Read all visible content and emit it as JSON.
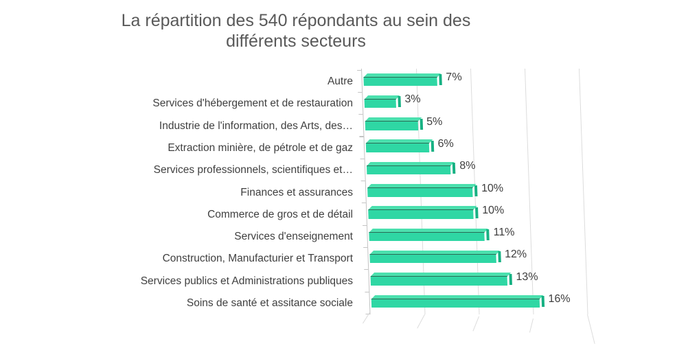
{
  "chart_data": {
    "type": "bar",
    "orientation": "horizontal",
    "style": "3d",
    "title": "La répartition des 540 répondants au sein des\ndifférents secteurs",
    "categories": [
      "Autre",
      "Services d'hébergement et de restauration",
      "Industrie de l'information, des Arts, des…",
      "Extraction minière, de pétrole et de gaz",
      "Services professionnels, scientifiques et…",
      "Finances et assurances",
      "Commerce de gros et de détail",
      "Services d'enseignement",
      "Construction, Manufacturier et Transport",
      "Services publics et Administrations publiques",
      "Soins de santé et assitance sociale"
    ],
    "values": [
      7,
      3,
      5,
      6,
      8,
      10,
      10,
      11,
      12,
      13,
      16
    ],
    "data_labels": [
      "7%",
      "3%",
      "5%",
      "6%",
      "8%",
      "10%",
      "10%",
      "11%",
      "12%",
      "13%",
      "16%"
    ],
    "unit": "%",
    "xlabel": "",
    "ylabel": "",
    "xlim": [
      0,
      20
    ],
    "gridlines_every": 5,
    "grid": "on",
    "legend": "none",
    "colors": {
      "bar_front": "#2fd7a4",
      "bar_top": "#4be0ae",
      "bar_edge": "#2a6b55",
      "bar_cap": "#17b183",
      "gridline": "#dcdcdc",
      "axis_line": "#c3c3c3",
      "title_text": "#595959",
      "label_text": "#3f3f3f",
      "background": "#ffffff"
    }
  }
}
